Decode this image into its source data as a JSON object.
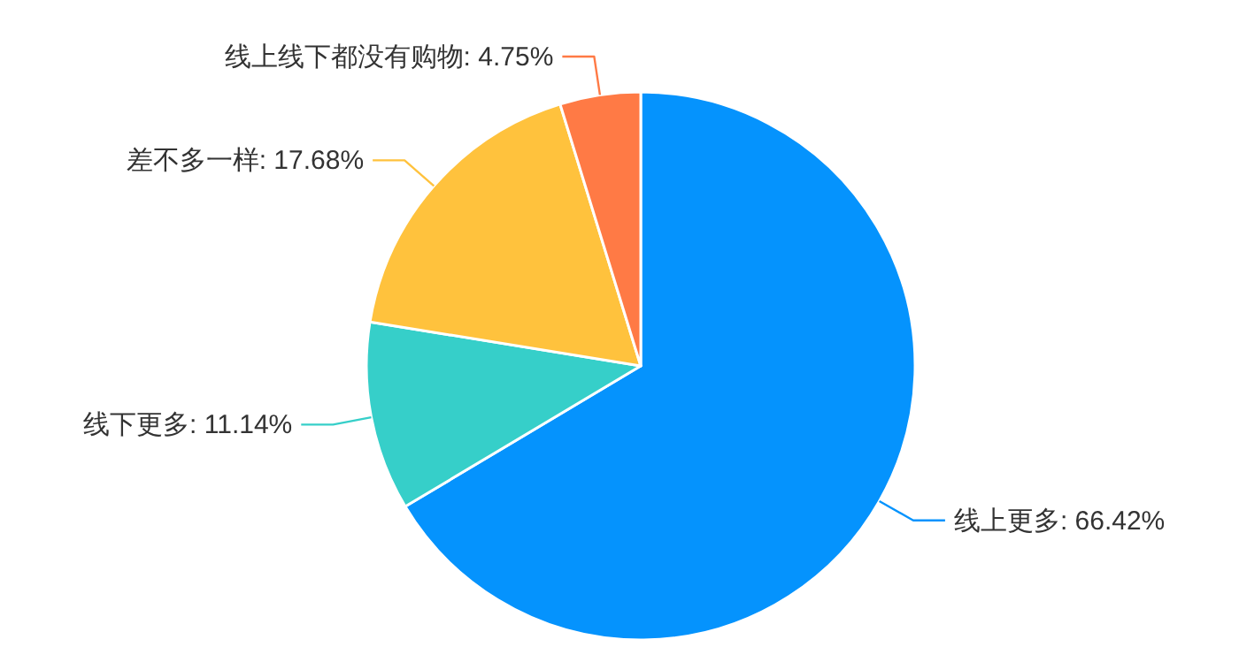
{
  "chart_data": {
    "type": "pie",
    "categories": [
      "线上更多",
      "线下更多",
      "差不多一样",
      "线上线下都没有购物"
    ],
    "values": [
      66.42,
      11.14,
      17.68,
      4.75
    ],
    "colors": [
      "#0593fd",
      "#36cfc9",
      "#ffc23d",
      "#ff7a45"
    ],
    "value_labels": [
      ": 66.42%",
      ": 11.14%",
      ": 17.68%",
      ": 4.75%"
    ]
  }
}
